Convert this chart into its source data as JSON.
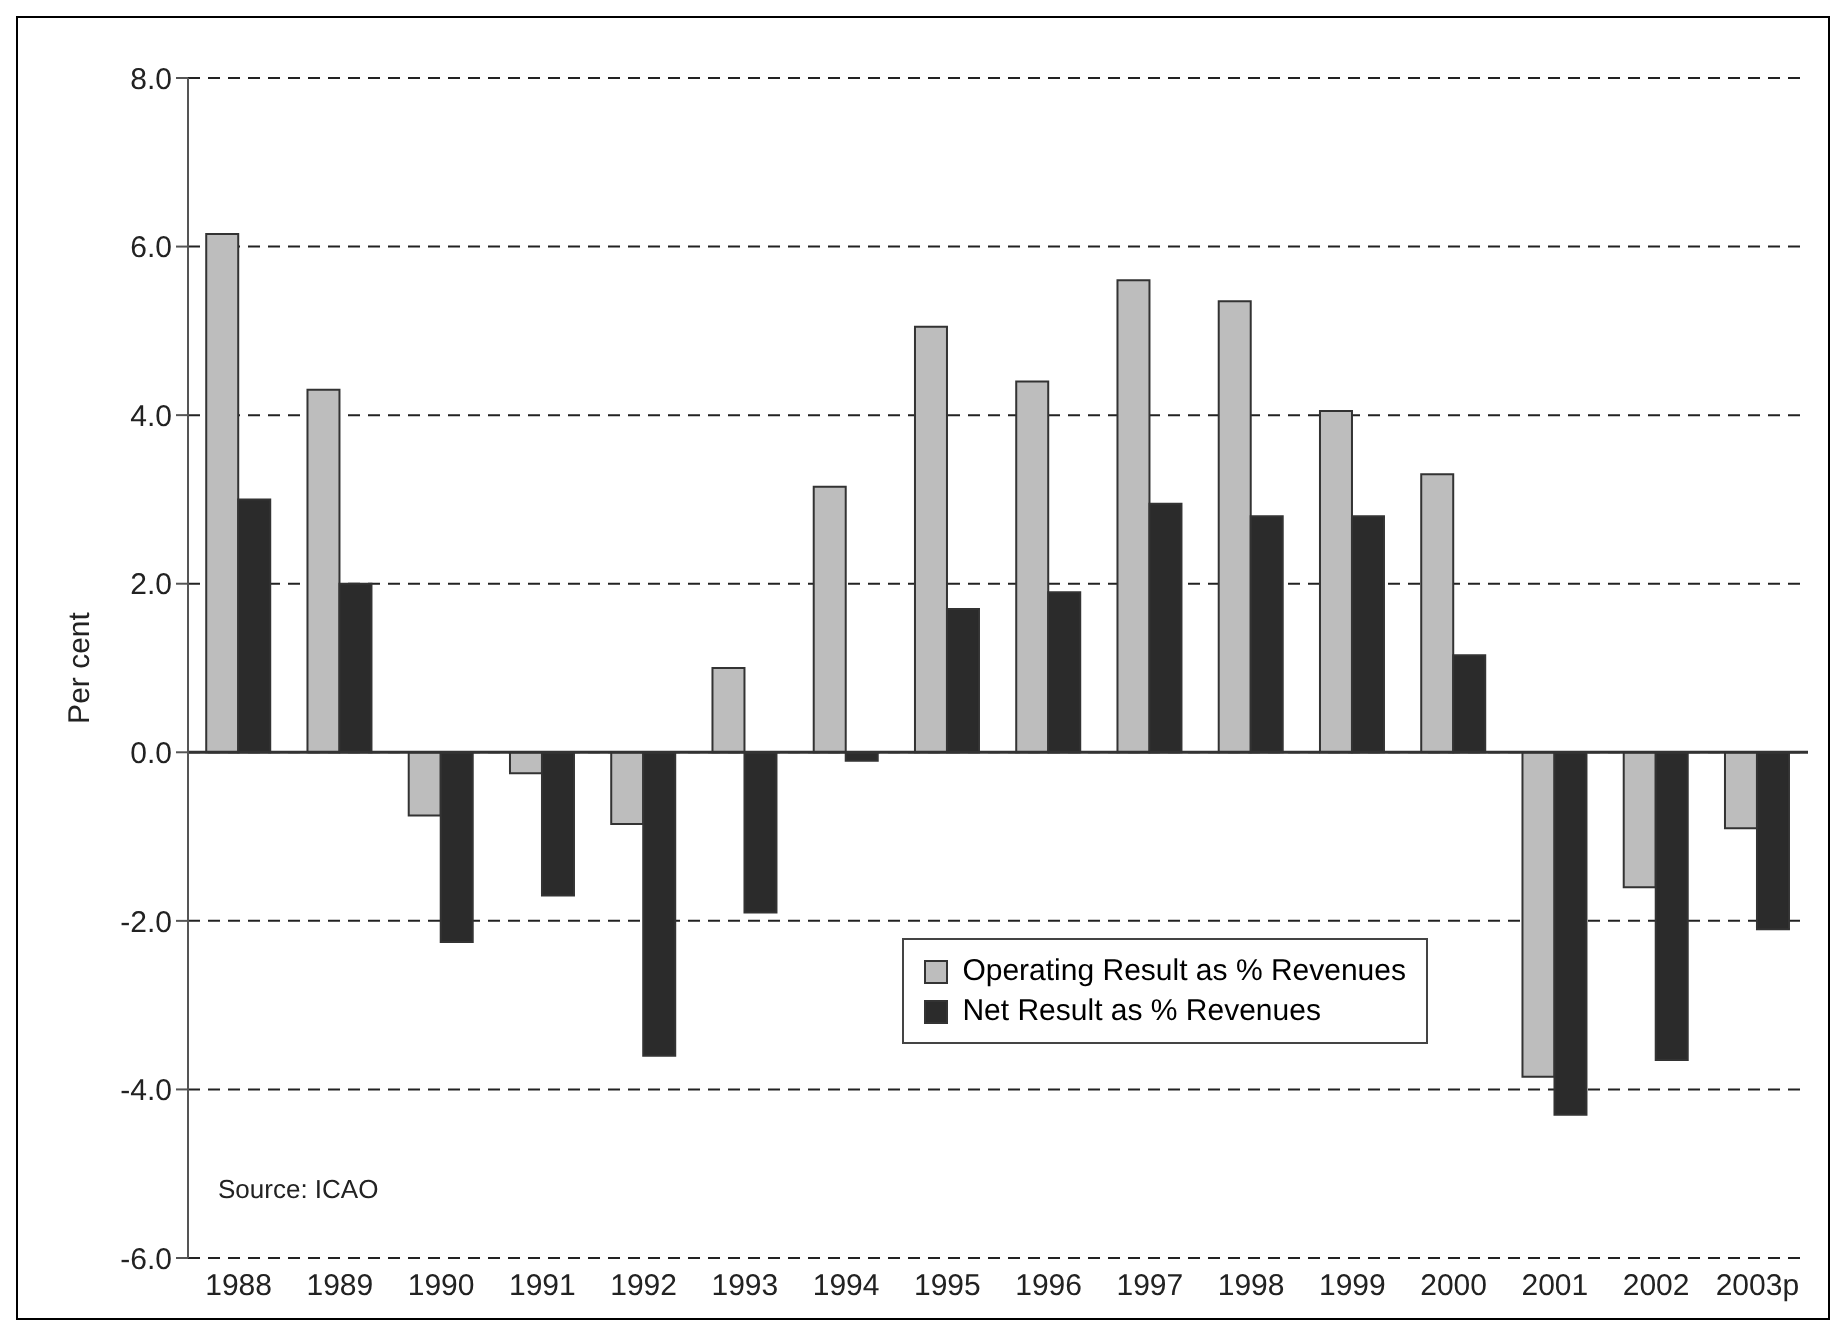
{
  "chart_data": {
    "type": "bar",
    "ylabel": "Per cent",
    "categories": [
      "1988",
      "1989",
      "1990",
      "1991",
      "1992",
      "1993",
      "1994",
      "1995",
      "1996",
      "1997",
      "1998",
      "1999",
      "2000",
      "2001",
      "2002",
      "2003p"
    ],
    "series": [
      {
        "name": "Operating Result as % Revenues",
        "color": "#bdbdbd",
        "values": [
          6.15,
          4.3,
          -0.75,
          -0.25,
          -0.85,
          1.0,
          3.15,
          5.05,
          4.4,
          5.6,
          5.35,
          4.05,
          3.3,
          -3.85,
          -1.6,
          -0.9
        ]
      },
      {
        "name": "Net Result as % Revenues",
        "color": "#2b2b2b",
        "values": [
          3.0,
          2.0,
          -2.25,
          -1.7,
          -3.6,
          -1.9,
          -0.1,
          1.7,
          1.9,
          2.95,
          2.8,
          2.8,
          1.15,
          -4.3,
          -3.65,
          -2.1
        ]
      }
    ],
    "ylim": [
      -6,
      8
    ],
    "yticks": [
      {
        "value": -6,
        "label": "-6.0"
      },
      {
        "value": -4,
        "label": "-4.0"
      },
      {
        "value": -2,
        "label": "-2.0"
      },
      {
        "value": 0,
        "label": "0.0"
      },
      {
        "value": 2,
        "label": "2.0"
      },
      {
        "value": 4,
        "label": "4.0"
      },
      {
        "value": 6,
        "label": "6.0"
      },
      {
        "value": 8,
        "label": "8.0"
      }
    ],
    "grid": "y",
    "legend": "bottom right",
    "annotations": [
      "Source: ICAO"
    ]
  }
}
